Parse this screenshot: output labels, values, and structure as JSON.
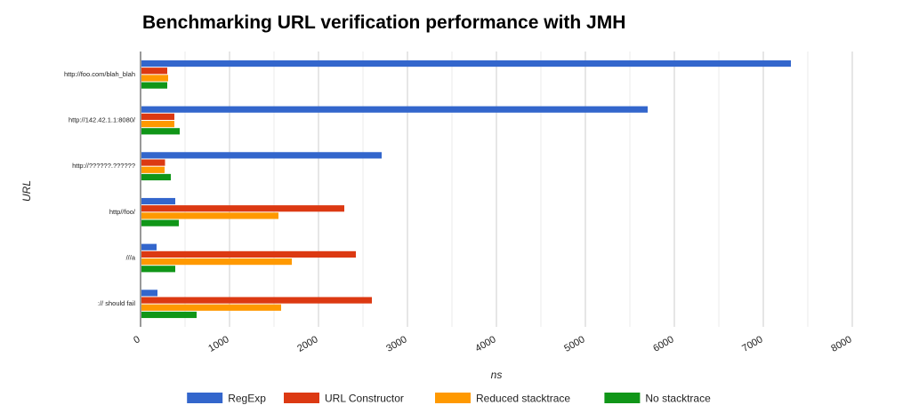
{
  "chart_data": {
    "type": "bar",
    "orientation": "horizontal",
    "title": "Benchmarking URL verification performance with JMH",
    "xlabel": "ns",
    "ylabel": "URL",
    "categories": [
      "http://foo.com/blah_blah",
      "http://142.42.1.1:8080/",
      "http://??????.??????",
      "http//foo/",
      "///a",
      ":// should fail"
    ],
    "series": [
      {
        "name": "RegExp",
        "color": "#3366cc",
        "values": [
          7300,
          5690,
          2700,
          380,
          170,
          180
        ]
      },
      {
        "name": "URL Constructor",
        "color": "#dc3912",
        "values": [
          290,
          370,
          265,
          2280,
          2410,
          2590
        ]
      },
      {
        "name": "Reduced stacktrace",
        "color": "#ff9900",
        "values": [
          300,
          370,
          260,
          1540,
          1690,
          1570
        ]
      },
      {
        "name": "No stacktrace",
        "color": "#109618",
        "values": [
          290,
          430,
          330,
          420,
          380,
          620
        ]
      }
    ],
    "xlim": [
      0,
      8000
    ],
    "xticks": [
      0,
      1000,
      2000,
      3000,
      4000,
      5000,
      6000,
      7000,
      8000
    ],
    "grid": true,
    "legend_position": "bottom"
  }
}
